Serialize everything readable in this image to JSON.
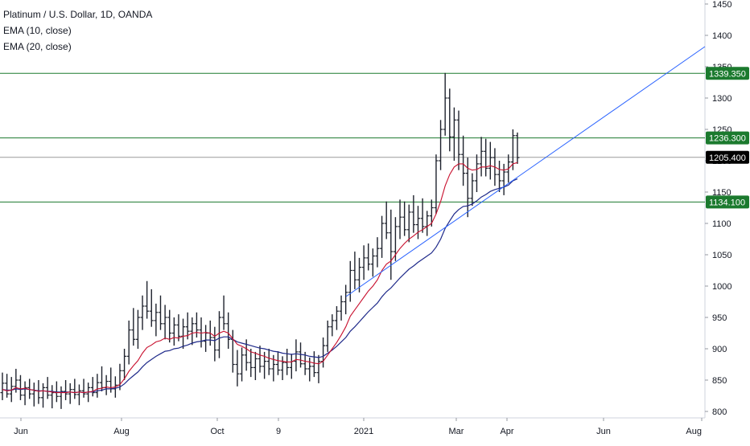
{
  "legend": {
    "symbol": "Platinum / U.S. Dollar, 1D, OANDA",
    "ema1": "EMA (10, close)",
    "ema2": "EMA (20, close)"
  },
  "chart_data": {
    "type": "candlestick",
    "ylim": [
      795,
      1460
    ],
    "y_ticks": [
      800,
      850,
      900,
      950,
      1000,
      1050,
      1100,
      1150,
      1200,
      1250,
      1300,
      1350,
      1400,
      1450
    ],
    "x_ticks": [
      "Jun",
      "Aug",
      "Oct",
      "9",
      "2021",
      "Mar",
      "Apr",
      "Jun",
      "Aug"
    ],
    "horizontal_levels": [
      {
        "value": 1339.35,
        "label": "1339.350",
        "color": "#1b7a2e"
      },
      {
        "value": 1236.3,
        "label": "1236.300",
        "color": "#1b7a2e"
      },
      {
        "value": 1134.1,
        "label": "1134.100",
        "color": "#1b7a2e"
      }
    ],
    "last_price": {
      "value": 1205.4,
      "label": "1205.400",
      "color": "#000000"
    },
    "trendline": {
      "from": 980,
      "to": 1380,
      "color": "#2962ff"
    },
    "ohlc": [
      [
        830,
        862,
        818,
        845
      ],
      [
        845,
        860,
        822,
        828
      ],
      [
        828,
        855,
        815,
        840
      ],
      [
        840,
        868,
        830,
        850
      ],
      [
        850,
        858,
        818,
        826
      ],
      [
        826,
        848,
        810,
        838
      ],
      [
        838,
        852,
        820,
        828
      ],
      [
        828,
        846,
        808,
        833
      ],
      [
        833,
        850,
        812,
        822
      ],
      [
        822,
        845,
        806,
        838
      ],
      [
        838,
        855,
        820,
        826
      ],
      [
        826,
        842,
        805,
        830
      ],
      [
        830,
        848,
        815,
        824
      ],
      [
        824,
        840,
        804,
        832
      ],
      [
        832,
        850,
        818,
        828
      ],
      [
        828,
        845,
        812,
        835
      ],
      [
        835,
        852,
        820,
        827
      ],
      [
        827,
        843,
        810,
        833
      ],
      [
        833,
        852,
        822,
        828
      ],
      [
        828,
        846,
        815,
        838
      ],
      [
        838,
        855,
        824,
        830
      ],
      [
        830,
        860,
        822,
        846
      ],
      [
        846,
        872,
        832,
        838
      ],
      [
        838,
        858,
        826,
        848
      ],
      [
        848,
        870,
        830,
        836
      ],
      [
        836,
        856,
        822,
        842
      ],
      [
        842,
        876,
        834,
        865
      ],
      [
        865,
        900,
        850,
        888
      ],
      [
        888,
        945,
        875,
        930
      ],
      [
        930,
        965,
        905,
        915
      ],
      [
        915,
        962,
        900,
        950
      ],
      [
        950,
        985,
        930,
        968
      ],
      [
        968,
        1008,
        948,
        960
      ],
      [
        960,
        995,
        935,
        945
      ],
      [
        945,
        972,
        920,
        958
      ],
      [
        958,
        985,
        930,
        940
      ],
      [
        940,
        970,
        915,
        950
      ],
      [
        950,
        962,
        910,
        925
      ],
      [
        925,
        950,
        905,
        938
      ],
      [
        938,
        955,
        912,
        920
      ],
      [
        920,
        948,
        900,
        935
      ],
      [
        935,
        958,
        915,
        928
      ],
      [
        928,
        950,
        906,
        940
      ],
      [
        940,
        958,
        918,
        930
      ],
      [
        930,
        950,
        902,
        912
      ],
      [
        912,
        938,
        895,
        925
      ],
      [
        925,
        945,
        905,
        918
      ],
      [
        918,
        935,
        880,
        898
      ],
      [
        898,
        960,
        885,
        950
      ],
      [
        950,
        985,
        930,
        940
      ],
      [
        940,
        958,
        900,
        915
      ],
      [
        915,
        930,
        862,
        875
      ],
      [
        875,
        898,
        840,
        860
      ],
      [
        860,
        902,
        848,
        890
      ],
      [
        890,
        915,
        865,
        878
      ],
      [
        878,
        900,
        855,
        870
      ],
      [
        870,
        895,
        850,
        884
      ],
      [
        884,
        905,
        862,
        872
      ],
      [
        872,
        895,
        852,
        880
      ],
      [
        880,
        900,
        858,
        868
      ],
      [
        868,
        890,
        848,
        875
      ],
      [
        875,
        896,
        858,
        866
      ],
      [
        866,
        888,
        850,
        878
      ],
      [
        878,
        900,
        858,
        870
      ],
      [
        870,
        892,
        852,
        880
      ],
      [
        880,
        915,
        864,
        895
      ],
      [
        895,
        910,
        870,
        876
      ],
      [
        876,
        895,
        858,
        868
      ],
      [
        868,
        886,
        848,
        872
      ],
      [
        872,
        896,
        855,
        862
      ],
      [
        862,
        890,
        845,
        880
      ],
      [
        880,
        918,
        870,
        905
      ],
      [
        905,
        945,
        895,
        935
      ],
      [
        935,
        955,
        920,
        945
      ],
      [
        945,
        968,
        930,
        960
      ],
      [
        960,
        985,
        945,
        975
      ],
      [
        975,
        1002,
        955,
        990
      ],
      [
        990,
        1040,
        975,
        1025
      ],
      [
        1025,
        1055,
        995,
        1010
      ],
      [
        1010,
        1045,
        990,
        1030
      ],
      [
        1030,
        1065,
        1010,
        1045
      ],
      [
        1045,
        1068,
        1025,
        1035
      ],
      [
        1035,
        1060,
        1015,
        1048
      ],
      [
        1048,
        1078,
        1030,
        1060
      ],
      [
        1060,
        1112,
        1045,
        1100
      ],
      [
        1100,
        1135,
        1075,
        1085
      ],
      [
        1085,
        1122,
        1010,
        1055
      ],
      [
        1055,
        1110,
        1040,
        1095
      ],
      [
        1095,
        1138,
        1075,
        1110
      ],
      [
        1110,
        1135,
        1080,
        1090
      ],
      [
        1090,
        1130,
        1070,
        1118
      ],
      [
        1118,
        1145,
        1085,
        1098
      ],
      [
        1098,
        1128,
        1075,
        1108
      ],
      [
        1108,
        1140,
        1085,
        1095
      ],
      [
        1095,
        1120,
        1080,
        1112
      ],
      [
        1112,
        1138,
        1095,
        1125
      ],
      [
        1125,
        1210,
        1115,
        1200
      ],
      [
        1200,
        1265,
        1185,
        1250
      ],
      [
        1250,
        1340,
        1240,
        1300
      ],
      [
        1300,
        1315,
        1215,
        1238
      ],
      [
        1238,
        1285,
        1200,
        1265
      ],
      [
        1265,
        1280,
        1185,
        1210
      ],
      [
        1210,
        1240,
        1160,
        1180
      ],
      [
        1180,
        1205,
        1110,
        1140
      ],
      [
        1140,
        1180,
        1128,
        1168
      ],
      [
        1168,
        1210,
        1150,
        1195
      ],
      [
        1195,
        1238,
        1175,
        1215
      ],
      [
        1215,
        1235,
        1175,
        1188
      ],
      [
        1188,
        1230,
        1170,
        1205
      ],
      [
        1205,
        1220,
        1160,
        1178
      ],
      [
        1178,
        1200,
        1150,
        1168
      ],
      [
        1168,
        1195,
        1145,
        1182
      ],
      [
        1182,
        1210,
        1165,
        1198
      ],
      [
        1198,
        1250,
        1185,
        1240
      ],
      [
        1240,
        1245,
        1195,
        1205
      ]
    ],
    "ema10": [
      835,
      833,
      834,
      838,
      836,
      837,
      835,
      834,
      832,
      833,
      832,
      831,
      830,
      830,
      830,
      831,
      830,
      831,
      830,
      831,
      832,
      836,
      837,
      839,
      838,
      839,
      843,
      852,
      864,
      873,
      881,
      893,
      902,
      906,
      911,
      913,
      917,
      915,
      918,
      917,
      920,
      921,
      925,
      926,
      925,
      926,
      925,
      920,
      925,
      928,
      925,
      916,
      907,
      904,
      900,
      895,
      893,
      890,
      888,
      885,
      883,
      881,
      880,
      879,
      879,
      883,
      882,
      880,
      879,
      877,
      876,
      880,
      890,
      900,
      910,
      922,
      935,
      952,
      962,
      972,
      982,
      992,
      1000,
      1010,
      1025,
      1035,
      1040,
      1050,
      1060,
      1068,
      1075,
      1080,
      1086,
      1090,
      1095,
      1100,
      1115,
      1135,
      1160,
      1178,
      1190,
      1195,
      1195,
      1188,
      1185,
      1186,
      1190,
      1190,
      1192,
      1190,
      1186,
      1185,
      1187,
      1195,
      1197
    ],
    "ema20": [
      835,
      834,
      834,
      836,
      835,
      836,
      835,
      834,
      833,
      833,
      832,
      832,
      831,
      831,
      831,
      831,
      830,
      831,
      830,
      831,
      831,
      833,
      834,
      836,
      836,
      837,
      839,
      844,
      851,
      857,
      863,
      871,
      878,
      883,
      888,
      892,
      896,
      897,
      900,
      901,
      904,
      906,
      909,
      911,
      912,
      914,
      914,
      913,
      917,
      919,
      919,
      915,
      911,
      909,
      907,
      905,
      903,
      901,
      900,
      898,
      896,
      895,
      893,
      892,
      891,
      892,
      891,
      890,
      888,
      887,
      886,
      888,
      893,
      898,
      904,
      911,
      918,
      928,
      935,
      943,
      951,
      959,
      966,
      973,
      983,
      991,
      997,
      1005,
      1013,
      1020,
      1027,
      1032,
      1038,
      1043,
      1048,
      1053,
      1062,
      1075,
      1092,
      1104,
      1115,
      1122,
      1127,
      1128,
      1131,
      1136,
      1142,
      1146,
      1151,
      1154,
      1156,
      1158,
      1161,
      1168,
      1171
    ]
  }
}
